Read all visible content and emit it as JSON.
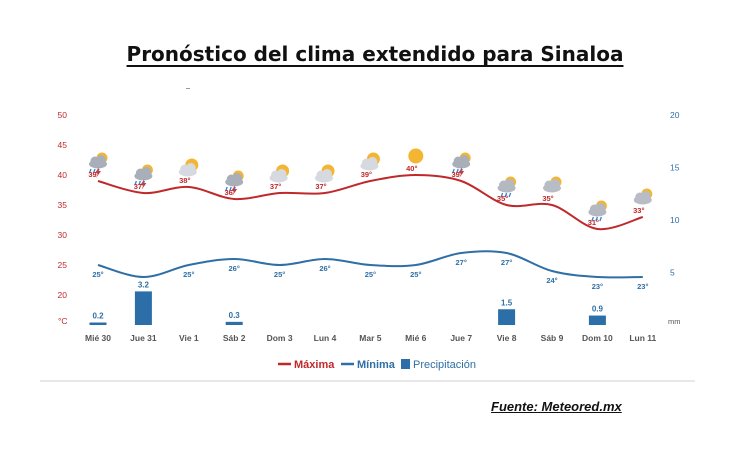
{
  "title": "Pronóstico del clima extendido para Sinaloa",
  "source": "Fuente: Meteored.mx",
  "chart_data": {
    "type": "line",
    "categories": [
      "Mié 30",
      "Jue 31",
      "Vie 1",
      "Sáb 2",
      "Dom 3",
      "Lun 4",
      "Mar 5",
      "Mié 6",
      "Jue 7",
      "Vie 8",
      "Sáb 9",
      "Dom 10",
      "Lun 11"
    ],
    "y_left": {
      "unit": "°C",
      "ticks": [
        50,
        45,
        40,
        35,
        30,
        25,
        20
      ],
      "min": 15,
      "max": 50
    },
    "y_right": {
      "unit": "mm",
      "ticks": [
        20,
        15,
        10,
        5
      ],
      "min": 0,
      "max": 20
    },
    "series": [
      {
        "name": "Máxima",
        "type": "line",
        "axis": "left",
        "color": "#c0292b",
        "values": [
          39,
          37,
          38,
          36,
          37,
          37,
          39,
          40,
          39,
          35,
          35,
          31,
          33
        ],
        "labels": [
          "39°",
          "37°",
          "38°",
          "36°",
          "37°",
          "37°",
          "39°",
          "40°",
          "39°",
          "35°",
          "35°",
          "31°",
          "33°"
        ]
      },
      {
        "name": "Mínima",
        "type": "line",
        "axis": "left",
        "color": "#2f6fa5",
        "values": [
          25,
          23,
          25,
          26,
          25,
          26,
          25,
          25,
          27,
          27,
          24,
          23,
          23
        ],
        "labels": [
          "25°",
          "",
          "25°",
          "26°",
          "25°",
          "26°",
          "25°",
          "25°",
          "27°",
          "27°",
          "24°",
          "23°",
          "23°"
        ]
      },
      {
        "name": "Precipitación",
        "type": "bar",
        "axis": "right",
        "color": "#2b6ea8",
        "values": [
          0.2,
          3.2,
          0,
          0.3,
          0,
          0,
          0,
          0,
          0,
          1.5,
          0,
          0.9,
          0
        ],
        "labels": [
          "0.2",
          "3.2",
          "",
          "0.3",
          "",
          "",
          "",
          "",
          "",
          "1.5",
          "",
          "0.9",
          ""
        ]
      }
    ],
    "icons": [
      "storm-icon",
      "storm-icon",
      "partly-sunny-icon",
      "storm-icon",
      "partly-sunny-icon",
      "partly-sunny-icon",
      "partly-sunny-icon",
      "sun-icon",
      "storm-icon",
      "rain-icon",
      "cloudy-icon",
      "rain-icon",
      "cloudy-icon"
    ],
    "legend_position": "bottom-center",
    "grid": false
  }
}
